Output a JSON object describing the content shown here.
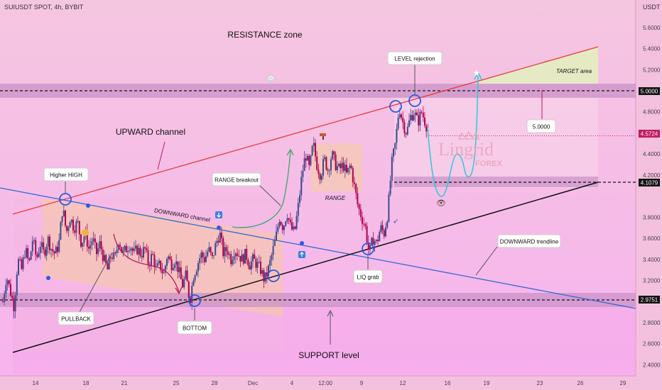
{
  "header": {
    "symbol": "SUIUSDT SPOT, 4h, BYBIT",
    "currency": "USDT"
  },
  "watermark": {
    "line1": "Lingrid",
    "line2": "FOREX"
  },
  "colors": {
    "background_top": "#f5c4e0",
    "background_bottom": "#f8b8ec",
    "bull": "#3b4a8c",
    "bear": "#b3004d",
    "zone": "#c78cc4",
    "upward_line": "#e33a3a",
    "downward_line": "#2e6ad6",
    "support_line": "#111111",
    "projection": "#2cc9d9",
    "range_box": "#f5c9b4",
    "target_box": "#e3eec0"
  },
  "chart_data": {
    "type": "candlestick",
    "title": "",
    "y_ticks": [
      "5.6000",
      "5.4000",
      "5.2000",
      "4.8000",
      "4.6000",
      "4.4000",
      "4.2000",
      "3.8000",
      "3.6000",
      "3.4000",
      "3.2000",
      "2.8000",
      "2.6000",
      "2.4000"
    ],
    "price_labels": [
      {
        "value": "5.0000",
        "type": "level"
      },
      {
        "value": "4.5724",
        "type": "last"
      },
      {
        "value": "4.1079",
        "type": "level"
      },
      {
        "value": "2.9751",
        "type": "level"
      }
    ],
    "x_ticks": [
      "14",
      "18",
      "21",
      "25",
      "28",
      "Dec",
      "4",
      "12:00",
      "9",
      "12",
      "16",
      "19",
      "23",
      "26",
      "29"
    ],
    "ylim": [
      2.3,
      5.8
    ],
    "ohlc_path": [
      [
        0,
        3.0
      ],
      [
        3,
        3.25
      ],
      [
        6,
        3.1
      ],
      [
        9,
        2.95
      ],
      [
        12,
        3.4
      ],
      [
        15,
        3.3
      ],
      [
        18,
        3.5
      ],
      [
        21,
        3.35
      ],
      [
        24,
        3.6
      ],
      [
        27,
        3.4
      ],
      [
        30,
        3.55
      ],
      [
        33,
        3.45
      ],
      [
        36,
        3.6
      ],
      [
        39,
        3.5
      ],
      [
        42,
        3.45
      ],
      [
        45,
        3.55
      ],
      [
        48,
        3.9
      ],
      [
        51,
        3.65
      ],
      [
        54,
        3.8
      ],
      [
        57,
        3.7
      ],
      [
        60,
        3.75
      ],
      [
        63,
        3.55
      ],
      [
        66,
        3.65
      ],
      [
        69,
        3.5
      ],
      [
        72,
        3.6
      ],
      [
        75,
        3.45
      ],
      [
        78,
        3.55
      ],
      [
        81,
        3.4
      ],
      [
        84,
        3.3
      ],
      [
        87,
        3.45
      ],
      [
        90,
        3.4
      ],
      [
        93,
        3.6
      ],
      [
        96,
        3.45
      ],
      [
        99,
        3.5
      ],
      [
        102,
        3.55
      ],
      [
        105,
        3.45
      ],
      [
        108,
        3.5
      ],
      [
        111,
        3.45
      ],
      [
        114,
        3.5
      ],
      [
        117,
        3.35
      ],
      [
        120,
        3.45
      ],
      [
        123,
        3.3
      ],
      [
        126,
        3.35
      ],
      [
        129,
        3.25
      ],
      [
        132,
        3.45
      ],
      [
        135,
        3.35
      ],
      [
        138,
        3.4
      ],
      [
        141,
        3.3
      ],
      [
        144,
        3.15
      ],
      [
        147,
        3.25
      ],
      [
        150,
        3.0
      ],
      [
        153,
        3.25
      ],
      [
        156,
        3.35
      ],
      [
        159,
        3.45
      ],
      [
        162,
        3.4
      ],
      [
        165,
        3.5
      ],
      [
        168,
        3.4
      ],
      [
        171,
        3.55
      ],
      [
        174,
        3.65
      ],
      [
        177,
        3.45
      ],
      [
        180,
        3.5
      ],
      [
        183,
        3.4
      ],
      [
        186,
        3.5
      ],
      [
        189,
        3.45
      ],
      [
        192,
        3.4
      ],
      [
        195,
        3.45
      ],
      [
        198,
        3.35
      ],
      [
        201,
        3.4
      ],
      [
        204,
        3.35
      ],
      [
        207,
        3.3
      ],
      [
        210,
        3.2
      ],
      [
        213,
        3.3
      ],
      [
        216,
        3.45
      ],
      [
        219,
        3.6
      ],
      [
        222,
        3.8
      ],
      [
        225,
        3.7
      ],
      [
        228,
        3.85
      ],
      [
        231,
        3.7
      ],
      [
        234,
        3.65
      ],
      [
        237,
        3.9
      ],
      [
        240,
        4.2
      ],
      [
        243,
        4.4
      ],
      [
        246,
        4.25
      ],
      [
        249,
        4.5
      ],
      [
        252,
        4.3
      ],
      [
        255,
        4.2
      ],
      [
        258,
        4.35
      ],
      [
        261,
        4.25
      ],
      [
        264,
        4.4
      ],
      [
        267,
        4.3
      ],
      [
        270,
        4.25
      ],
      [
        273,
        4.3
      ],
      [
        276,
        4.2
      ],
      [
        279,
        4.3
      ],
      [
        282,
        4.1
      ],
      [
        285,
        3.9
      ],
      [
        288,
        3.8
      ],
      [
        291,
        3.7
      ],
      [
        294,
        3.45
      ],
      [
        297,
        3.6
      ],
      [
        300,
        3.55
      ],
      [
        303,
        3.7
      ],
      [
        306,
        3.65
      ],
      [
        309,
        3.85
      ],
      [
        312,
        4.3
      ],
      [
        315,
        4.5
      ],
      [
        318,
        4.85
      ],
      [
        321,
        4.7
      ],
      [
        324,
        4.6
      ],
      [
        327,
        4.75
      ],
      [
        330,
        4.8
      ],
      [
        333,
        4.7
      ],
      [
        336,
        4.8
      ],
      [
        339,
        4.7
      ],
      [
        342,
        4.6
      ]
    ],
    "last_price": 4.5724
  },
  "annotations": {
    "resistance_zone": "RESISTANCE zone",
    "upward_channel": "UPWARD channel",
    "higher_high": "Higher HIGH",
    "downward_channel": "DOWNWARD channel",
    "range_breakout": "RANGE breakout",
    "range": "RANGE",
    "level_rejection": "LEVEL rejection",
    "target_area": "TARGET area",
    "level_box": "5.0000",
    "liq_grab": "LIQ grab",
    "downward_trendline": "DOWNWARD trendline",
    "pullback": "PULLBACK",
    "bottom": "BOTTOM",
    "support_level": "SUPPORT level"
  },
  "icons": [
    "info-icon",
    "star-icon",
    "eye-icon",
    "rocket-icon",
    "hammer-icon",
    "down-arrow-icon",
    "up-arrow-icon",
    "emoji-icon"
  ]
}
